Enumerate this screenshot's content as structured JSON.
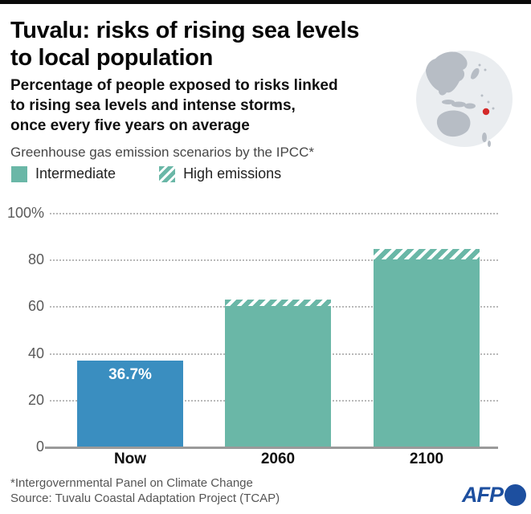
{
  "header": {
    "title_line1": "Tuvalu: risks of rising sea levels",
    "title_line2": "to local population",
    "subtitle_lines": [
      "Percentage of people exposed to risks linked",
      "to rising sea levels and intense storms,",
      "once every five years on average"
    ]
  },
  "legend": {
    "title": "Greenhouse gas emission scenarios by the IPCC*",
    "items": [
      {
        "label": "Intermediate",
        "style": "solid"
      },
      {
        "label": "High emissions",
        "style": "hatched"
      }
    ]
  },
  "chart_data": {
    "type": "bar",
    "title": "Tuvalu: risks of rising sea levels to local population",
    "categories": [
      "Now",
      "2060",
      "2100"
    ],
    "series": [
      {
        "name": "Intermediate",
        "values": [
          36.7,
          60,
          80
        ]
      },
      {
        "name": "High emissions",
        "values": [
          36.7,
          63,
          84.5
        ]
      }
    ],
    "encoding_note": "hatched cap on bars = additional exposure under high-emissions scenario above the intermediate value",
    "bar_value_label": {
      "category": "Now",
      "text": "36.7%"
    },
    "yticks": [
      0,
      20,
      40,
      60,
      80,
      100
    ],
    "ytick_labels": [
      "0",
      "20",
      "40",
      "60",
      "80",
      "100%"
    ],
    "ylim": [
      0,
      100
    ],
    "grid": "dotted-horizontal",
    "legend_position": "top-left",
    "colors": {
      "now_bar": "#3a8ec0",
      "scenario_bar": "#6ab7a7"
    }
  },
  "map": {
    "region": "Pacific globe with Tuvalu marked",
    "marker_color": "#d42a2a",
    "land_color": "#b7bdc5",
    "ocean_color": "#eaedf0"
  },
  "footer": {
    "note": "*Intergovernmental Panel on Climate Change",
    "source": "Source: Tuvalu Coastal Adaptation Project (TCAP)",
    "logo": "AFP"
  }
}
